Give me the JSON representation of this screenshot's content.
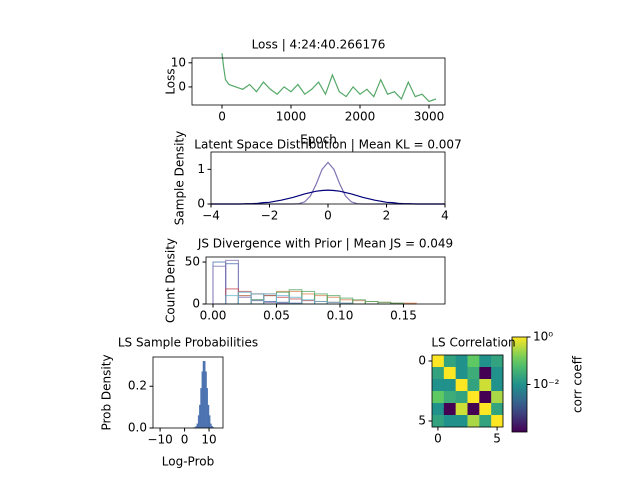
{
  "chart_data": [
    {
      "type": "line",
      "title": "Loss | 4:24:40.266176",
      "xlabel": "Epoch",
      "ylabel": "Loss",
      "x": [
        0,
        25,
        50,
        100,
        200,
        300,
        400,
        500,
        600,
        700,
        800,
        900,
        1000,
        1100,
        1200,
        1300,
        1400,
        1500,
        1600,
        1700,
        1800,
        1900,
        2000,
        2100,
        2200,
        2300,
        2400,
        2500,
        2600,
        2700,
        2800,
        2900,
        3000,
        3100
      ],
      "series": [
        {
          "color": "#55a868",
          "values": [
            14,
            8,
            3,
            1,
            0,
            -1,
            1,
            -2,
            2,
            -1,
            -3,
            0,
            -2,
            1,
            -3,
            -1,
            2,
            -3,
            5,
            -2,
            -4,
            0,
            -3,
            -1,
            -4,
            3,
            -3,
            -2,
            -5,
            2,
            -4,
            -3,
            -6,
            -5
          ]
        }
      ],
      "xlim": [
        -435,
        3232
      ],
      "ylim": [
        -7.5,
        12
      ],
      "xticks": [
        0,
        1000,
        2000,
        3000
      ],
      "yticks": [
        0,
        10
      ]
    },
    {
      "type": "line",
      "title": "Latent Space Distribution | Mean KL = 0.007",
      "ylabel": "Sample Density",
      "x": [
        -4,
        -3.8,
        -3.6,
        -3.4,
        -3.2,
        -3,
        -2.8,
        -2.6,
        -2.4,
        -2.2,
        -2,
        -1.8,
        -1.6,
        -1.4,
        -1.2,
        -1,
        -0.8,
        -0.6,
        -0.4,
        -0.2,
        0,
        0.2,
        0.4,
        0.6,
        0.8,
        1,
        1.2,
        1.4,
        1.6,
        1.8,
        2,
        2.2,
        2.4,
        2.6,
        2.8,
        3,
        3.2,
        3.4,
        3.6,
        3.8,
        4
      ],
      "series": [
        {
          "color": "#8172b3",
          "values": [
            0,
            0,
            0,
            0,
            0,
            0,
            0,
            0,
            0,
            0,
            0,
            0,
            0,
            0,
            0,
            0.01,
            0.06,
            0.23,
            0.58,
            1.0,
            1.2,
            1.0,
            0.58,
            0.23,
            0.06,
            0.01,
            0,
            0,
            0,
            0,
            0,
            0,
            0,
            0,
            0,
            0,
            0,
            0,
            0,
            0,
            0
          ]
        },
        {
          "color": "#00007a",
          "values": [
            0,
            0,
            0,
            0,
            0,
            0,
            0.01,
            0.01,
            0.02,
            0.04,
            0.05,
            0.08,
            0.11,
            0.15,
            0.19,
            0.24,
            0.29,
            0.33,
            0.37,
            0.39,
            0.4,
            0.39,
            0.37,
            0.33,
            0.29,
            0.24,
            0.19,
            0.15,
            0.11,
            0.08,
            0.05,
            0.04,
            0.02,
            0.01,
            0.01,
            0,
            0,
            0,
            0,
            0,
            0
          ]
        }
      ],
      "xlim": [
        -4,
        4
      ],
      "ylim": [
        0,
        1.5
      ],
      "xticks": [
        {
          "value": -4,
          "label": "−4"
        },
        {
          "value": -2,
          "label": "−2"
        },
        0,
        2,
        4
      ],
      "yticks": [
        0,
        1
      ]
    },
    {
      "type": "histogram",
      "title": "JS Divergence with Prior | Mean JS = 0.049",
      "ylabel": "Count Density",
      "bins": [
        0,
        0.01,
        0.02,
        0.03,
        0.04,
        0.05,
        0.06,
        0.07,
        0.08,
        0.09,
        0.1,
        0.11,
        0.12,
        0.13,
        0.14,
        0.15,
        0.16,
        0.17,
        0.18
      ],
      "series": [
        {
          "color": "#4c72b0",
          "values": [
            50,
            48,
            10,
            5,
            3,
            2,
            1,
            0,
            0,
            0,
            0,
            0,
            0,
            0,
            0,
            0,
            0,
            0
          ]
        },
        {
          "color": "#8172b3",
          "values": [
            45,
            52,
            8,
            4,
            2,
            1,
            0,
            0,
            0,
            0,
            0,
            0,
            0,
            0,
            0,
            0,
            0,
            0
          ]
        },
        {
          "color": "#dd8452",
          "values": [
            0,
            0,
            10,
            12,
            12,
            15,
            15,
            12,
            10,
            8,
            5,
            4,
            3,
            2,
            1,
            1,
            0,
            0
          ]
        },
        {
          "color": "#55a868",
          "values": [
            0,
            0,
            0,
            5,
            10,
            14,
            17,
            15,
            12,
            10,
            7,
            5,
            3,
            2,
            1,
            0,
            0,
            0
          ]
        },
        {
          "color": "#c44e52",
          "values": [
            0,
            18,
            15,
            12,
            10,
            8,
            6,
            4,
            3,
            2,
            1,
            0,
            0,
            0,
            0,
            0,
            0,
            0
          ]
        },
        {
          "color": "#64b5cd",
          "values": [
            0,
            10,
            14,
            12,
            12,
            10,
            8,
            5,
            3,
            2,
            1,
            0,
            0,
            0,
            0,
            0,
            0,
            0
          ]
        }
      ],
      "fill": false,
      "xlim": [
        -0.0055,
        0.1827
      ],
      "ylim": [
        0,
        56
      ],
      "xticks": [
        {
          "value": 0,
          "label": "0.00"
        },
        0.05,
        {
          "value": 0.1,
          "label": "0.10"
        },
        0.15
      ],
      "yticks": [
        0,
        50
      ]
    },
    {
      "type": "histogram",
      "title": "LS Sample Probabilities",
      "xlabel": "Log-Prob",
      "ylabel": "Prob Density",
      "bins": [
        2,
        2.5,
        3,
        3.5,
        4,
        4.5,
        5,
        5.5,
        6,
        6.5,
        7,
        7.5,
        8,
        8.5,
        9,
        9.5,
        10,
        10.5,
        11,
        11.5,
        12
      ],
      "series": [
        {
          "color": "#4c72b0",
          "values": [
            0,
            0,
            0,
            0.001,
            0.003,
            0.008,
            0.02,
            0.06,
            0.11,
            0.19,
            0.27,
            0.32,
            0.32,
            0.27,
            0.19,
            0.11,
            0.06,
            0.02,
            0.008,
            0.003
          ]
        }
      ],
      "fill": true,
      "xlim": [
        -12.9,
        15.7
      ],
      "ylim": [
        0,
        0.34
      ],
      "xticks": [
        {
          "value": -10,
          "label": "−10"
        },
        0,
        10
      ],
      "yticks": [
        {
          "value": 0,
          "label": "0.0"
        },
        {
          "value": 0.2,
          "label": "0.2"
        }
      ]
    },
    {
      "type": "heatmap",
      "title": "LS Correlation",
      "colormap": "viridis",
      "values": [
        [
          1,
          0.02,
          0.01,
          0.1,
          0.01,
          0.02
        ],
        [
          0.02,
          1,
          0.01,
          0.03,
          0.0001,
          0.01
        ],
        [
          0.01,
          0.01,
          1,
          0.02,
          0.5,
          0.01
        ],
        [
          0.1,
          0.03,
          0.02,
          1,
          0.0001,
          0.3
        ],
        [
          0.01,
          0.0001,
          0.5,
          0.0001,
          1,
          0.02
        ],
        [
          0.02,
          0.01,
          0.01,
          0.3,
          0.02,
          1
        ]
      ],
      "xticks": [
        0,
        5
      ],
      "yticks": [
        0,
        5
      ],
      "colorbar": {
        "label": "corr coeff",
        "log": true,
        "lim": [
          0.0001,
          1
        ],
        "ticks": [
          {
            "value": 1,
            "label": "10⁰"
          },
          {
            "value": 0.01,
            "label": "10⁻²"
          }
        ]
      }
    }
  ]
}
